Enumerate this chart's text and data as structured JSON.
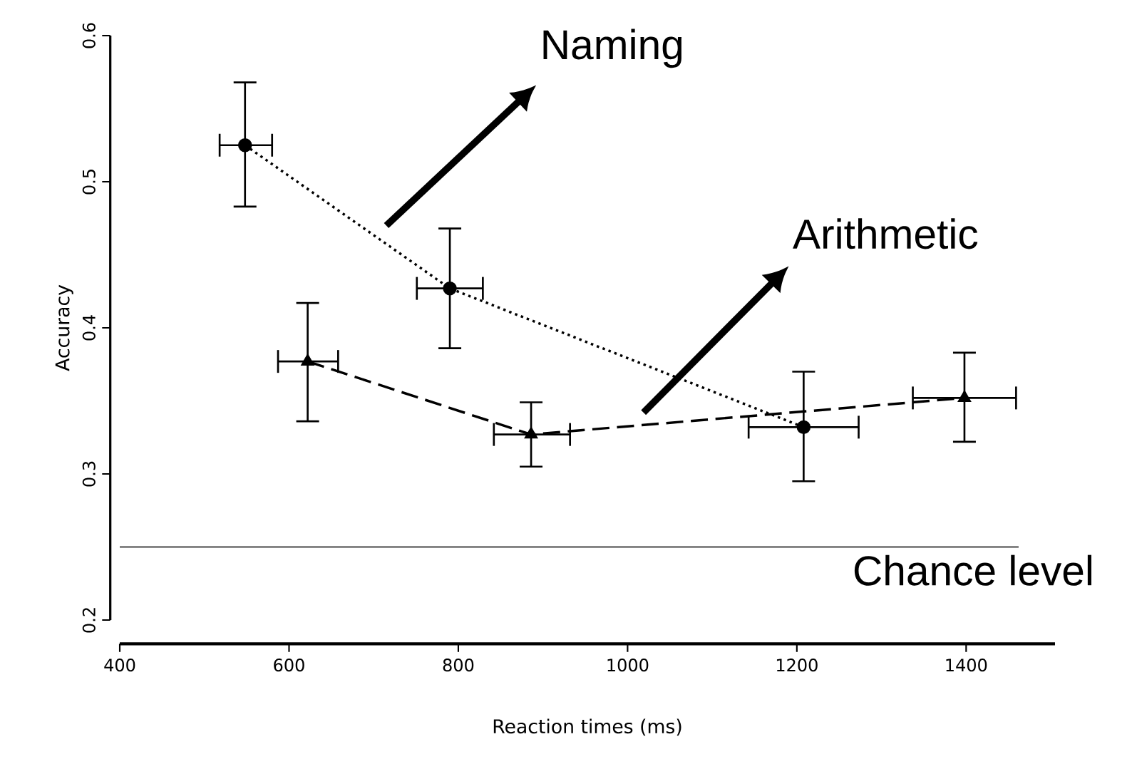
{
  "chart_data": {
    "type": "line",
    "xlabel": "Reaction times (ms)",
    "ylabel": "Accuracy",
    "xlim": [
      400,
      1505
    ],
    "xticks": [
      400,
      600,
      800,
      1000,
      1200,
      1400
    ],
    "ylim": [
      0.2,
      0.6
    ],
    "yticks": [
      0.2,
      0.3,
      0.4,
      0.5,
      0.6
    ],
    "grid": false,
    "legend": false,
    "series": [
      {
        "name": "Naming",
        "color": "#000000",
        "marker": "circle",
        "line_style": "dotted",
        "x": [
          548,
          790,
          1208
        ],
        "values": [
          0.525,
          0.427,
          0.332
        ],
        "errors": [
          [
            0.483,
            0.568
          ],
          [
            0.386,
            0.468
          ],
          [
            0.295,
            0.37
          ]
        ],
        "xerrors": [
          [
            518,
            580
          ],
          [
            751,
            829
          ],
          [
            1143,
            1273
          ]
        ]
      },
      {
        "name": "Arithmetic",
        "color": "#000000",
        "marker": "triangle",
        "line_style": "dashed",
        "x": [
          622,
          886,
          1398
        ],
        "values": [
          0.377,
          0.327,
          0.352
        ],
        "errors": [
          [
            0.336,
            0.417
          ],
          [
            0.305,
            0.349
          ],
          [
            0.322,
            0.383
          ]
        ],
        "xerrors": [
          [
            587,
            658
          ],
          [
            842,
            932
          ],
          [
            1337,
            1459
          ]
        ]
      }
    ],
    "ref_lines": [
      {
        "axis": "y",
        "value": 0.25,
        "label": "Chance level",
        "color": "#000000"
      }
    ]
  }
}
